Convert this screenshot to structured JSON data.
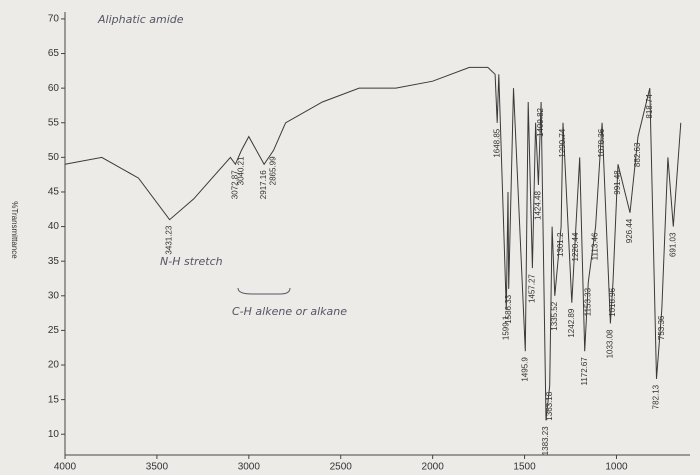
{
  "chart_data": {
    "type": "line",
    "title": "Aliphatic amide",
    "y_label": "%Transmittance",
    "annotations": [
      "N-H stretch",
      "C-H alkene or alkane"
    ],
    "x": [
      4000,
      3800,
      3600,
      3431.23,
      3300,
      3200,
      3100,
      3072.87,
      3040.21,
      3000,
      2917.16,
      2865.99,
      2800,
      2600,
      2400,
      2200,
      2000,
      1800,
      1700,
      1660,
      1648.85,
      1640,
      1599.1,
      1590,
      1586.33,
      1560,
      1495.9,
      1480,
      1457.27,
      1440,
      1424.48,
      1409.82,
      1383.23,
      1363.18,
      1350,
      1335.52,
      1301.2,
      1290.74,
      1242.89,
      1220.44,
      1200,
      1172.67,
      1153.33,
      1113.46,
      1078.36,
      1033.08,
      1018.96,
      991.48,
      926.44,
      882.63,
      818.74,
      782.13,
      753.36,
      720,
      691.03,
      650
    ],
    "series": [
      {
        "name": "%Transmittance",
        "color": "#3a3a3a",
        "values": [
          49,
          50,
          47,
          41,
          44,
          47,
          50,
          49,
          51,
          53,
          49,
          51,
          55,
          58,
          60,
          60,
          61,
          63,
          63,
          62,
          55,
          62,
          28,
          45,
          31,
          60,
          22,
          58,
          34,
          55,
          46,
          58,
          12,
          17,
          40,
          30,
          40,
          55,
          29,
          40,
          50,
          22,
          32,
          40,
          55,
          26,
          32,
          49,
          42,
          53,
          60,
          18,
          28,
          50,
          40,
          55
        ]
      }
    ],
    "peaks": [
      3431.23,
      3072.87,
      3040.21,
      2917.16,
      2865.99,
      1648.85,
      1599.1,
      1586.33,
      1495.9,
      1457.27,
      1424.48,
      1409.82,
      1383.23,
      1363.18,
      1335.52,
      1301.2,
      1290.74,
      1242.89,
      1220.44,
      1172.67,
      1153.33,
      1113.46,
      1078.36,
      1033.08,
      1018.96,
      991.48,
      926.44,
      882.63,
      818.74,
      782.13,
      753.36,
      691.03
    ],
    "xlim": [
      4000,
      600
    ],
    "ylim": [
      7,
      71
    ],
    "xticks": [
      4000,
      3500,
      3000,
      2500,
      2000,
      1500,
      1000
    ],
    "yticks": [
      10,
      15,
      20,
      25,
      30,
      35,
      40,
      45,
      50,
      55,
      60,
      65,
      70
    ]
  }
}
